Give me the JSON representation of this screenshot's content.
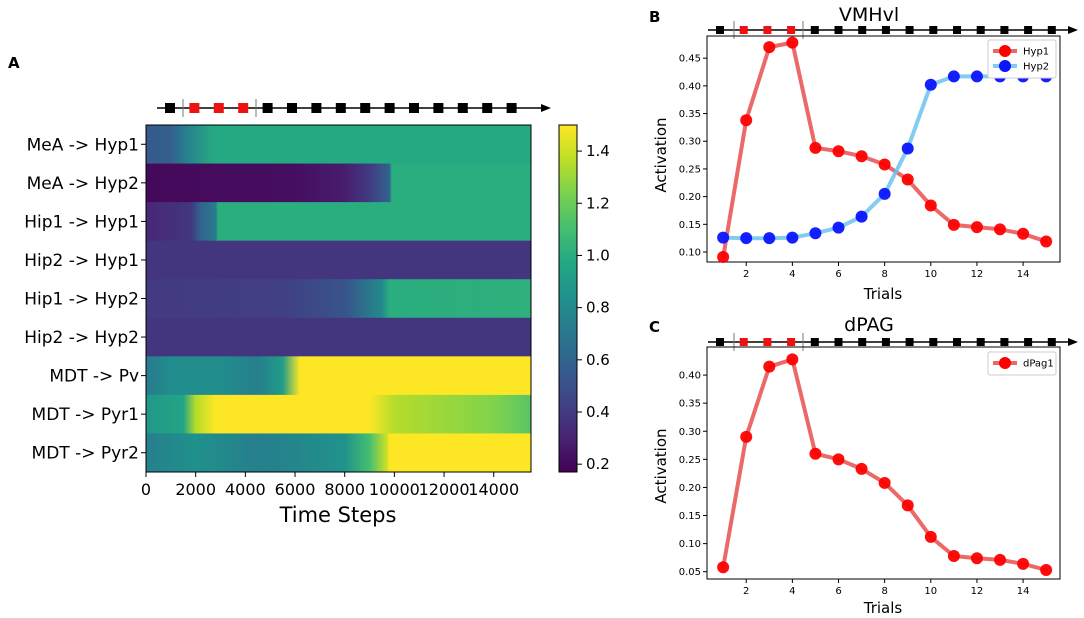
{
  "panels": {
    "a": {
      "letter": "A"
    },
    "b": {
      "letter": "B"
    },
    "c": {
      "letter": "C"
    }
  },
  "colors": {
    "red_series": "#e8504f",
    "red_marker": "#ff0000",
    "blue_series": "#6cc3ee",
    "blue_marker": "#0a14ff",
    "timeline_dark": "#000000",
    "timeline_red": "#ee1111"
  },
  "timeline_pattern": [
    "k",
    "r",
    "r",
    "r",
    "k",
    "k",
    "k",
    "k",
    "k",
    "k",
    "k",
    "k",
    "k",
    "k",
    "k"
  ],
  "chart_data": [
    {
      "type": "heatmap",
      "id": "heatmap",
      "title": "",
      "xlabel": "Time Steps",
      "ylabel": "",
      "xlim": [
        0,
        15500
      ],
      "x_ticks": [
        "0",
        "2000",
        "4000",
        "6000",
        "8000",
        "10000",
        "12000",
        "14000"
      ],
      "x_tick_values": [
        0,
        2000,
        4000,
        6000,
        8000,
        10000,
        12000,
        14000
      ],
      "rows": [
        "MeA -> Hyp1",
        "MeA -> Hyp2",
        "Hip1 -> Hyp1",
        "Hip2 -> Hyp1",
        "Hip1 -> Hyp2",
        "Hip2 -> Hyp2",
        "MDT -> Pv",
        "MDT -> Pyr1",
        "MDT -> Pyr2"
      ],
      "colorbar": {
        "range": [
          0.17,
          1.5
        ],
        "ticks": [
          "1.4",
          "1.2",
          "1.0",
          "0.8",
          "0.6",
          "0.4",
          "0.2"
        ],
        "tick_values": [
          1.4,
          1.2,
          1.0,
          0.8,
          0.6,
          0.4,
          0.2
        ]
      },
      "segments": [
        [
          [
            0,
            0.55
          ],
          [
            1000,
            0.58
          ],
          [
            1500,
            0.72
          ],
          [
            2700,
            0.98
          ],
          [
            15500,
            0.98
          ]
        ],
        [
          [
            0,
            0.2
          ],
          [
            6000,
            0.22
          ],
          [
            8000,
            0.28
          ],
          [
            9000,
            0.4
          ],
          [
            9800,
            0.6
          ],
          [
            9900,
            1.0
          ],
          [
            15500,
            1.0
          ]
        ],
        [
          [
            0,
            0.32
          ],
          [
            1800,
            0.38
          ],
          [
            2200,
            0.6
          ],
          [
            2800,
            0.72
          ],
          [
            2900,
            1.0
          ],
          [
            15500,
            1.0
          ]
        ],
        [
          [
            0,
            0.38
          ],
          [
            15500,
            0.38
          ]
        ],
        [
          [
            0,
            0.4
          ],
          [
            5500,
            0.42
          ],
          [
            8000,
            0.52
          ],
          [
            9500,
            0.8
          ],
          [
            9800,
            1.0
          ],
          [
            15500,
            1.02
          ]
        ],
        [
          [
            0,
            0.38
          ],
          [
            15500,
            0.38
          ]
        ],
        [
          [
            0,
            0.72
          ],
          [
            1000,
            0.82
          ],
          [
            3000,
            0.82
          ],
          [
            4500,
            0.74
          ],
          [
            5500,
            0.9
          ],
          [
            6200,
            1.5
          ],
          [
            15500,
            1.5
          ]
        ],
        [
          [
            0,
            0.88
          ],
          [
            1500,
            0.95
          ],
          [
            2000,
            1.35
          ],
          [
            2800,
            1.5
          ],
          [
            9000,
            1.5
          ],
          [
            10000,
            1.35
          ],
          [
            12000,
            1.3
          ],
          [
            14000,
            1.25
          ],
          [
            15500,
            1.15
          ]
        ],
        [
          [
            0,
            0.74
          ],
          [
            2000,
            0.84
          ],
          [
            4500,
            0.74
          ],
          [
            6000,
            0.78
          ],
          [
            8000,
            0.85
          ],
          [
            9000,
            1.1
          ],
          [
            9700,
            1.4
          ],
          [
            9800,
            1.5
          ],
          [
            15500,
            1.5
          ]
        ]
      ]
    },
    {
      "type": "line",
      "id": "vmhvl",
      "title": "VMHvl",
      "xlabel": "Trials",
      "ylabel": "Activation",
      "xlim": [
        0.3,
        15.6
      ],
      "ylim": [
        0.082,
        0.49
      ],
      "x_ticks": [
        "2",
        "4",
        "6",
        "8",
        "10",
        "12",
        "14"
      ],
      "x_tick_values": [
        2,
        4,
        6,
        8,
        10,
        12,
        14
      ],
      "y_ticks": [
        "0.10",
        "0.15",
        "0.20",
        "0.25",
        "0.30",
        "0.35",
        "0.40",
        "0.45"
      ],
      "y_tick_values": [
        0.1,
        0.15,
        0.2,
        0.25,
        0.3,
        0.35,
        0.4,
        0.45
      ],
      "legend": "top-right",
      "x": [
        1,
        2,
        3,
        4,
        5,
        6,
        7,
        8,
        9,
        10,
        11,
        12,
        13,
        14,
        15
      ],
      "series": [
        {
          "name": "Hyp1",
          "values": [
            0.091,
            0.338,
            0.47,
            0.478,
            0.288,
            0.282,
            0.273,
            0.258,
            0.231,
            0.184,
            0.149,
            0.145,
            0.141,
            0.133,
            0.119
          ]
        },
        {
          "name": "Hyp2",
          "values": [
            0.126,
            0.125,
            0.125,
            0.126,
            0.134,
            0.144,
            0.164,
            0.205,
            0.287,
            0.402,
            0.417,
            0.417,
            0.417,
            0.417,
            0.417
          ]
        }
      ]
    },
    {
      "type": "line",
      "id": "dpag",
      "title": "dPAG",
      "xlabel": "Trials",
      "ylabel": "Activation",
      "xlim": [
        0.3,
        15.6
      ],
      "ylim": [
        0.037,
        0.45
      ],
      "x_ticks": [
        "2",
        "4",
        "6",
        "8",
        "10",
        "12",
        "14"
      ],
      "x_tick_values": [
        2,
        4,
        6,
        8,
        10,
        12,
        14
      ],
      "y_ticks": [
        "0.05",
        "0.10",
        "0.15",
        "0.20",
        "0.25",
        "0.30",
        "0.35",
        "0.40"
      ],
      "y_tick_values": [
        0.05,
        0.1,
        0.15,
        0.2,
        0.25,
        0.3,
        0.35,
        0.4
      ],
      "legend": "top-right",
      "x": [
        1,
        2,
        3,
        4,
        5,
        6,
        7,
        8,
        9,
        10,
        11,
        12,
        13,
        14,
        15
      ],
      "series": [
        {
          "name": "dPag1",
          "values": [
            0.058,
            0.29,
            0.415,
            0.428,
            0.26,
            0.25,
            0.233,
            0.208,
            0.168,
            0.112,
            0.078,
            0.074,
            0.071,
            0.064,
            0.053
          ]
        }
      ]
    }
  ]
}
